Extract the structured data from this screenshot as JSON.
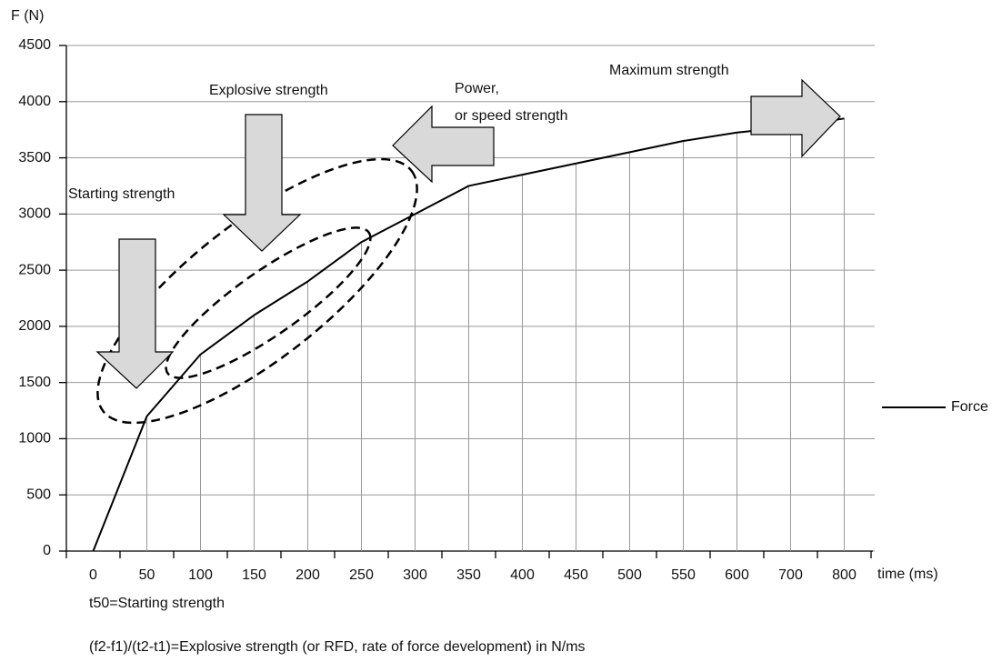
{
  "chart_data": {
    "type": "line",
    "y_label": "F (N)",
    "x_label": "time (ms)",
    "categories": [
      "0",
      "50",
      "100",
      "150",
      "200",
      "250",
      "300",
      "350",
      "400",
      "450",
      "500",
      "550",
      "600",
      "700",
      "800"
    ],
    "series": [
      {
        "name": "Force",
        "color": "#000000",
        "values": [
          0,
          1200,
          1750,
          2100,
          2400,
          2750,
          3000,
          3250,
          3350,
          3450,
          3550,
          3650,
          3725,
          3775,
          3850
        ]
      }
    ],
    "ylim": [
      0,
      4500
    ],
    "yticks": [
      0,
      500,
      1000,
      1500,
      2000,
      2500,
      3000,
      3500,
      4000,
      4500
    ],
    "grid": true,
    "drop_lines": true,
    "legend": "right",
    "annotations": [
      "Starting strength",
      "Explosive strength",
      "Power,",
      "or speed strength",
      "Maximum strength"
    ],
    "notes": [
      "t50=Starting strength",
      "(f2-f1)/(t2-t1)=Explosive strength (or RFD, rate of force development) in N/ms"
    ]
  }
}
